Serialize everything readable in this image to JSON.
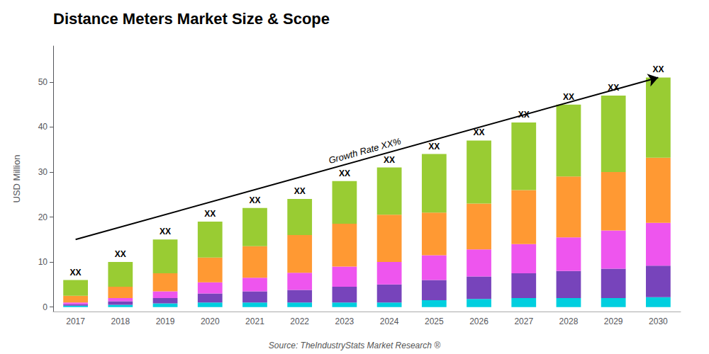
{
  "chart_data": {
    "type": "bar",
    "stacked": true,
    "title": "Distance Meters Market Size & Scope",
    "ylabel": "USD Million",
    "categories": [
      "2017",
      "2018",
      "2019",
      "2020",
      "2021",
      "2022",
      "2023",
      "2024",
      "2025",
      "2026",
      "2027",
      "2028",
      "2029",
      "2030"
    ],
    "series": [
      {
        "color": "#00cfdf",
        "values": [
          0.3,
          0.5,
          0.8,
          1.0,
          1.0,
          1.0,
          1.0,
          1.0,
          1.5,
          1.8,
          2.0,
          2.0,
          2.0,
          2.2
        ]
      },
      {
        "color": "#7744bb",
        "values": [
          0.3,
          0.8,
          1.2,
          2.0,
          2.5,
          2.8,
          3.5,
          4.0,
          4.5,
          5.0,
          5.5,
          6.0,
          6.5,
          7.0
        ]
      },
      {
        "color": "#ee55ee",
        "values": [
          0.4,
          0.7,
          1.5,
          2.5,
          3.0,
          3.8,
          4.5,
          5.0,
          5.5,
          6.0,
          6.5,
          7.5,
          8.5,
          9.5
        ]
      },
      {
        "color": "#ff9933",
        "values": [
          1.5,
          2.5,
          4.0,
          5.5,
          7.0,
          8.4,
          9.5,
          10.5,
          9.5,
          10.2,
          12.0,
          13.5,
          13.0,
          14.5
        ]
      },
      {
        "color": "#99cc33",
        "values": [
          3.5,
          5.5,
          7.5,
          8.0,
          8.5,
          8.0,
          9.5,
          10.5,
          13.0,
          14.0,
          15.0,
          16.0,
          17.0,
          17.8
        ]
      }
    ],
    "ylim": [
      -1,
      58
    ],
    "yticks": [
      0,
      10,
      20,
      30,
      40,
      50
    ],
    "grid": false,
    "annotations": [
      {
        "type": "total_label",
        "text": "XX"
      },
      {
        "type": "arrow",
        "x": [
          "2017",
          "2030"
        ],
        "y": [
          15,
          51
        ],
        "text": "Growth Rate XX%"
      },
      {
        "type": "source",
        "text": "Source: TheIndustryStats Market Research ®"
      }
    ]
  }
}
